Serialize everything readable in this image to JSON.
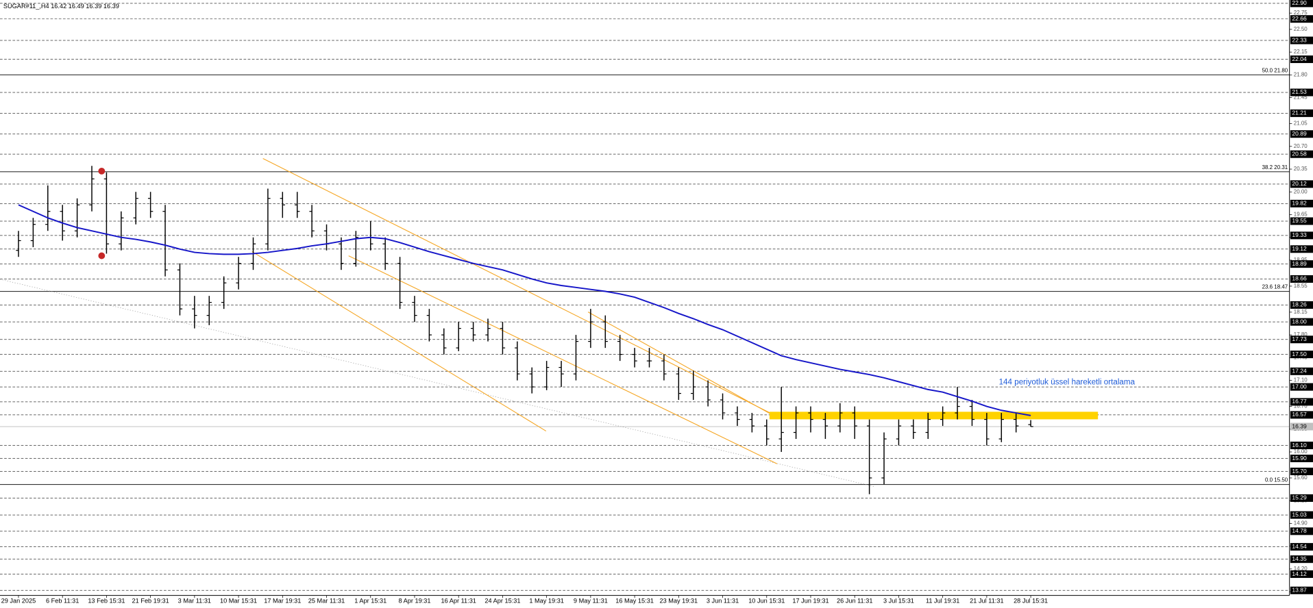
{
  "chart_data": {
    "type": "ohlc-bar",
    "header": "SUGAR#11_,H4  16.42 16.49 16.39 16.39",
    "annotation": "144 periyotluk üssel hareketli ortalama",
    "ylim": [
      13.87,
      22.9
    ],
    "yticks": [
      22.75,
      {
        "value": 22.5,
        "label": "22.50"
      },
      22.15,
      {
        "value": 21.8,
        "label": "21.80"
      },
      21.45,
      21.05,
      {
        "value": 20.7,
        "label": "20.70"
      },
      20.35,
      {
        "value": 20,
        "label": "20.00"
      },
      19.65,
      {
        "value": 19.3,
        "label": "19.30"
      },
      18.95,
      18.55,
      18.15,
      {
        "value": 17.8,
        "label": "17.80"
      },
      17.45,
      {
        "value": 17.1,
        "label": "17.10"
      },
      {
        "value": 16.7,
        "label": "16.70"
      },
      16.35,
      {
        "value": 16,
        "label": "16.00"
      },
      {
        "value": 15.6,
        "label": "15.60"
      },
      15.25,
      {
        "value": 14.9,
        "label": "14.90"
      },
      14.55,
      {
        "value": 14.2,
        "label": "14.20"
      },
      13.85
    ],
    "levels": [
      {
        "value": 22.9,
        "label": "22.90"
      },
      22.66,
      22.33,
      22.04,
      21.53,
      21.21,
      20.89,
      20.58,
      20.12,
      19.82,
      19.55,
      19.33,
      19.12,
      18.89,
      18.66,
      18.26,
      {
        "value": 18,
        "label": "18.00"
      },
      17.73,
      {
        "value": 17.5,
        "label": "17.50"
      },
      17.24,
      {
        "value": 17,
        "label": "17.00"
      },
      16.77,
      16.57,
      {
        "value": 16.1,
        "label": "16.10"
      },
      {
        "value": 15.9,
        "label": "15.90"
      },
      {
        "value": 15.7,
        "label": "15.70"
      },
      15.29,
      15.03,
      14.78,
      14.54,
      14.35,
      14.12,
      13.87
    ],
    "current_price": 16.39,
    "fib_levels": [
      {
        "value": 21.8,
        "label": "50.0 21.80"
      },
      {
        "value": 20.31,
        "label": "38.2 20.31"
      },
      {
        "value": 18.47,
        "label": "23.6 18.47"
      },
      {
        "value": 15.5,
        "label": "0.0 15.50"
      }
    ],
    "categories": [
      "29 Jan 2025",
      null,
      null,
      "6 Feb 11:31",
      null,
      null,
      "13 Feb 15:31",
      null,
      null,
      "21 Feb 19:31",
      null,
      null,
      "3 Mar 11:31",
      null,
      null,
      "10 Mar 15:31",
      null,
      null,
      "17 Mar 19:31",
      null,
      null,
      "25 Mar 11:31",
      null,
      null,
      "1 Apr 15:31",
      null,
      null,
      "8 Apr 19:31",
      null,
      null,
      "16 Apr 11:31",
      null,
      null,
      "24 Apr 15:31",
      null,
      null,
      "1 May 19:31",
      null,
      null,
      "9 May 11:31",
      null,
      null,
      "16 May 15:31",
      null,
      null,
      "23 May 19:31",
      null,
      null,
      "3 Jun 11:31",
      null,
      null,
      "10 Jun 15:31",
      null,
      null,
      "17 Jun 19:31",
      null,
      null,
      "26 Jun 11:31",
      null,
      null,
      "3 Jul 15:31",
      null,
      null,
      "11 Jul 19:31",
      null,
      null,
      "21 Jul 11:31",
      null,
      null,
      "28 Jul 15:31"
    ],
    "candles": [
      [
        19.1,
        19.4,
        19.0,
        19.25
      ],
      [
        19.25,
        19.6,
        19.15,
        19.5
      ],
      [
        19.5,
        20.1,
        19.4,
        19.7
      ],
      [
        19.7,
        19.8,
        19.25,
        19.4
      ],
      [
        19.4,
        19.9,
        19.3,
        19.8
      ],
      [
        19.8,
        20.4,
        19.7,
        20.2
      ],
      [
        20.2,
        20.3,
        19.05,
        19.2
      ],
      [
        19.2,
        19.7,
        19.1,
        19.6
      ],
      [
        19.6,
        20.0,
        19.5,
        19.9
      ],
      [
        19.9,
        20.0,
        19.6,
        19.7
      ],
      [
        19.7,
        19.8,
        18.7,
        18.8
      ],
      [
        18.8,
        18.9,
        18.1,
        18.2
      ],
      [
        18.2,
        18.4,
        17.9,
        18.1
      ],
      [
        18.1,
        18.4,
        17.95,
        18.3
      ],
      [
        18.3,
        18.7,
        18.2,
        18.6
      ],
      [
        18.6,
        19.0,
        18.5,
        18.9
      ],
      [
        18.9,
        19.3,
        18.8,
        19.2
      ],
      [
        19.2,
        20.05,
        19.1,
        19.9
      ],
      [
        19.9,
        20.0,
        19.6,
        19.8
      ],
      [
        19.8,
        20.0,
        19.6,
        19.7
      ],
      [
        19.7,
        19.8,
        19.3,
        19.4
      ],
      [
        19.4,
        19.5,
        19.1,
        19.2
      ],
      [
        19.2,
        19.3,
        18.8,
        18.9
      ],
      [
        18.9,
        19.4,
        18.85,
        19.3
      ],
      [
        19.3,
        19.55,
        19.1,
        19.2
      ],
      [
        19.2,
        19.3,
        18.8,
        18.9
      ],
      [
        18.9,
        19.0,
        18.2,
        18.3
      ],
      [
        18.3,
        18.4,
        18.0,
        18.1
      ],
      [
        18.1,
        18.2,
        17.7,
        17.8
      ],
      [
        17.8,
        17.9,
        17.5,
        17.6
      ],
      [
        17.6,
        18.0,
        17.55,
        17.9
      ],
      [
        17.9,
        18.0,
        17.7,
        17.8
      ],
      [
        17.8,
        18.05,
        17.7,
        17.9
      ],
      [
        17.9,
        18.0,
        17.5,
        17.6
      ],
      [
        17.6,
        17.7,
        17.1,
        17.2
      ],
      [
        17.2,
        17.3,
        16.9,
        17.0
      ],
      [
        17.0,
        17.4,
        16.95,
        17.3
      ],
      [
        17.3,
        17.4,
        17.0,
        17.2
      ],
      [
        17.2,
        17.8,
        17.1,
        17.7
      ],
      [
        17.7,
        18.2,
        17.6,
        18.0
      ],
      [
        18.0,
        18.1,
        17.6,
        17.7
      ],
      [
        17.7,
        17.8,
        17.4,
        17.5
      ],
      [
        17.5,
        17.6,
        17.3,
        17.4
      ],
      [
        17.4,
        17.6,
        17.3,
        17.4
      ],
      [
        17.4,
        17.5,
        17.1,
        17.2
      ],
      [
        17.2,
        17.3,
        16.8,
        16.9
      ],
      [
        16.9,
        17.25,
        16.8,
        17.0
      ],
      [
        17.0,
        17.1,
        16.7,
        16.8
      ],
      [
        16.8,
        16.9,
        16.5,
        16.6
      ],
      [
        16.6,
        16.7,
        16.4,
        16.5
      ],
      [
        16.5,
        16.6,
        16.3,
        16.4
      ],
      [
        16.4,
        16.5,
        16.1,
        16.2
      ],
      [
        16.2,
        17.0,
        16.0,
        16.3
      ],
      [
        16.3,
        16.7,
        16.2,
        16.6
      ],
      [
        16.6,
        16.7,
        16.3,
        16.5
      ],
      [
        16.5,
        16.6,
        16.2,
        16.4
      ],
      [
        16.4,
        16.75,
        16.3,
        16.6
      ],
      [
        16.6,
        16.7,
        16.2,
        16.4
      ],
      [
        16.4,
        16.5,
        15.35,
        15.6
      ],
      [
        15.6,
        16.3,
        15.5,
        16.2
      ],
      [
        16.2,
        16.5,
        16.1,
        16.4
      ],
      [
        16.4,
        16.5,
        16.2,
        16.3
      ],
      [
        16.3,
        16.6,
        16.2,
        16.5
      ],
      [
        16.5,
        16.7,
        16.4,
        16.6
      ],
      [
        16.6,
        17.0,
        16.5,
        16.7
      ],
      [
        16.7,
        16.8,
        16.4,
        16.5
      ],
      [
        16.5,
        16.6,
        16.1,
        16.2
      ],
      [
        16.2,
        16.6,
        16.15,
        16.5
      ],
      [
        16.5,
        16.6,
        16.3,
        16.4
      ],
      [
        16.42,
        16.49,
        16.39,
        16.39
      ]
    ],
    "series": [
      {
        "color": "#1515c8",
        "values": [
          19.8,
          19.7,
          19.6,
          19.52,
          19.45,
          19.4,
          19.35,
          19.3,
          19.27,
          19.23,
          19.18,
          19.12,
          19.07,
          19.05,
          19.04,
          19.04,
          19.05,
          19.07,
          19.1,
          19.13,
          19.17,
          19.2,
          19.24,
          19.28,
          19.3,
          19.28,
          19.22,
          19.15,
          19.08,
          19.02,
          18.96,
          18.9,
          18.85,
          18.8,
          18.73,
          18.66,
          18.6,
          18.56,
          18.53,
          18.5,
          18.47,
          18.43,
          18.38,
          18.3,
          18.22,
          18.13,
          18.05,
          17.96,
          17.88,
          17.78,
          17.68,
          17.58,
          17.48,
          17.42,
          17.37,
          17.32,
          17.27,
          17.23,
          17.19,
          17.14,
          17.08,
          17.02,
          16.96,
          16.92,
          16.85,
          16.78,
          16.7,
          16.64,
          16.6,
          16.56
        ]
      }
    ],
    "color": "#000000"
  }
}
